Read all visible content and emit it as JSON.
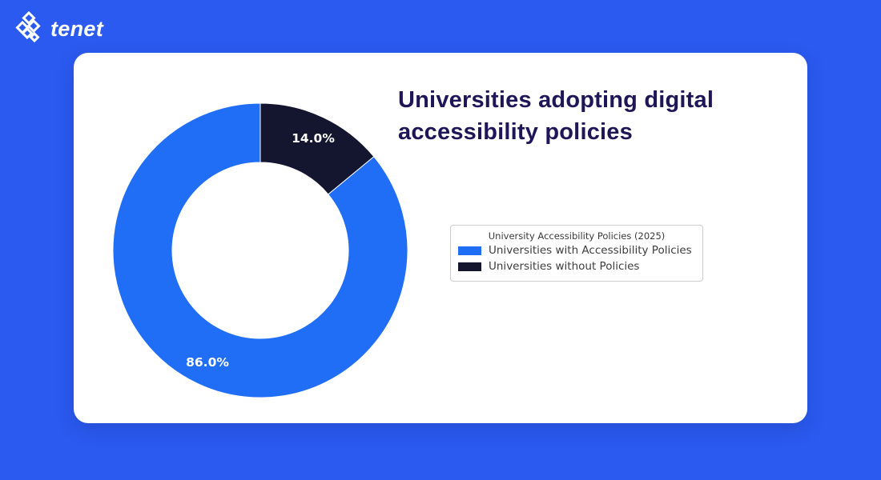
{
  "brand": {
    "name": "tenet"
  },
  "page": {
    "background_color": "#2b5af0"
  },
  "card": {
    "background": "#ffffff",
    "title_lines": [
      "Universities adopting digital",
      "accessibility policies"
    ],
    "title_color": "#1e1656"
  },
  "chart_data": {
    "type": "pie",
    "style": "donut",
    "title": "Universities adopting digital accessibility policies",
    "start_angle": "top",
    "direction": "counterclockwise",
    "inner_radius_ratio": 0.6,
    "legend": {
      "title": "University Accessibility Policies (2025)",
      "position": "center-right",
      "bordered": true
    },
    "slices": [
      {
        "label": "Universities with Accessibility Policies",
        "value": 86.0,
        "pct_label": "86.0%",
        "color": "#1f6ef5"
      },
      {
        "label": "Universities without Policies",
        "value": 14.0,
        "pct_label": "14.0%",
        "color": "#14152e"
      }
    ]
  }
}
